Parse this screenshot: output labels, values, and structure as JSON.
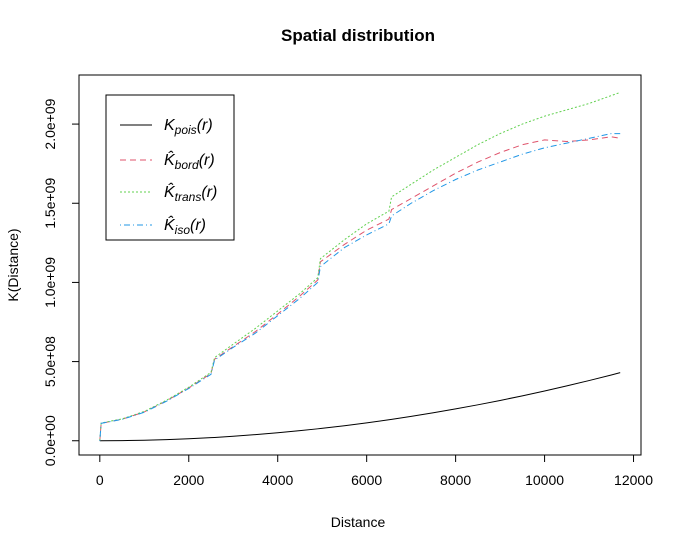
{
  "chart_data": {
    "type": "line",
    "title": "Spatial distribution",
    "xlabel": "Distance",
    "ylabel": "K(Distance)",
    "x": [
      0,
      30,
      500,
      1000,
      1500,
      2000,
      2500,
      2580,
      3000,
      3500,
      4000,
      4500,
      4900,
      4960,
      5500,
      6000,
      6500,
      6560,
      7000,
      7500,
      8000,
      8500,
      9000,
      9500,
      10000,
      10500,
      11000,
      11500,
      11700
    ],
    "series": [
      {
        "name": "Kpois(r)",
        "color": "#000000",
        "dash": "none",
        "values": [
          0,
          2827,
          785398,
          3140000,
          7070000,
          12570000,
          19630000,
          20900000,
          28300000,
          38500000,
          50300000,
          63600000,
          75400000,
          77300000,
          95000000,
          113100000,
          132700000,
          135200000,
          153900000,
          176700000,
          201100000,
          227000000,
          254500000,
          283500000,
          314200000,
          346400000,
          380100000,
          415500000,
          430000000
        ]
      },
      {
        "name": "K̂bord(r)",
        "color": "#DF536B",
        "dash": "6,4",
        "values": [
          0,
          110000000,
          136000000,
          182000000,
          252000000,
          333000000,
          425000000,
          515000000,
          595000000,
          690000000,
          800000000,
          915000000,
          1015000000,
          1130000000,
          1240000000,
          1330000000,
          1400000000,
          1460000000,
          1530000000,
          1610000000,
          1690000000,
          1760000000,
          1820000000,
          1870000000,
          1900000000,
          1890000000,
          1900000000,
          1920000000,
          1910000000
        ]
      },
      {
        "name": "K̂trans(r)",
        "color": "#61D04F",
        "dash": "2,2",
        "values": [
          0,
          112000000,
          138000000,
          185000000,
          256000000,
          338000000,
          432000000,
          525000000,
          610000000,
          710000000,
          820000000,
          930000000,
          1030000000,
          1150000000,
          1270000000,
          1370000000,
          1450000000,
          1540000000,
          1620000000,
          1710000000,
          1790000000,
          1870000000,
          1940000000,
          2000000000,
          2050000000,
          2090000000,
          2130000000,
          2180000000,
          2200000000
        ]
      },
      {
        "name": "K̂iso(r)",
        "color": "#2297E6",
        "dash": "1,3,6,3",
        "values": [
          0,
          110000000,
          135000000,
          180000000,
          250000000,
          330000000,
          420000000,
          510000000,
          590000000,
          680000000,
          790000000,
          900000000,
          1000000000,
          1100000000,
          1220000000,
          1300000000,
          1370000000,
          1420000000,
          1500000000,
          1580000000,
          1650000000,
          1710000000,
          1760000000,
          1810000000,
          1850000000,
          1880000000,
          1910000000,
          1940000000,
          1940000000
        ]
      }
    ],
    "xlim": [
      -468,
      12168
    ],
    "xticks": [
      0,
      2000,
      4000,
      6000,
      8000,
      10000,
      12000
    ],
    "ylim": [
      -90000000,
      2310000000
    ],
    "yticks": [
      {
        "value": 0,
        "label": "0.0e+00"
      },
      {
        "value": 500000000,
        "label": "5.0e+08"
      },
      {
        "value": 1000000000,
        "label": "1.0e+09"
      },
      {
        "value": 1500000000,
        "label": "1.5e+09"
      },
      {
        "value": 2000000000,
        "label": "2.0e+09"
      }
    ],
    "legend": "top-left"
  }
}
